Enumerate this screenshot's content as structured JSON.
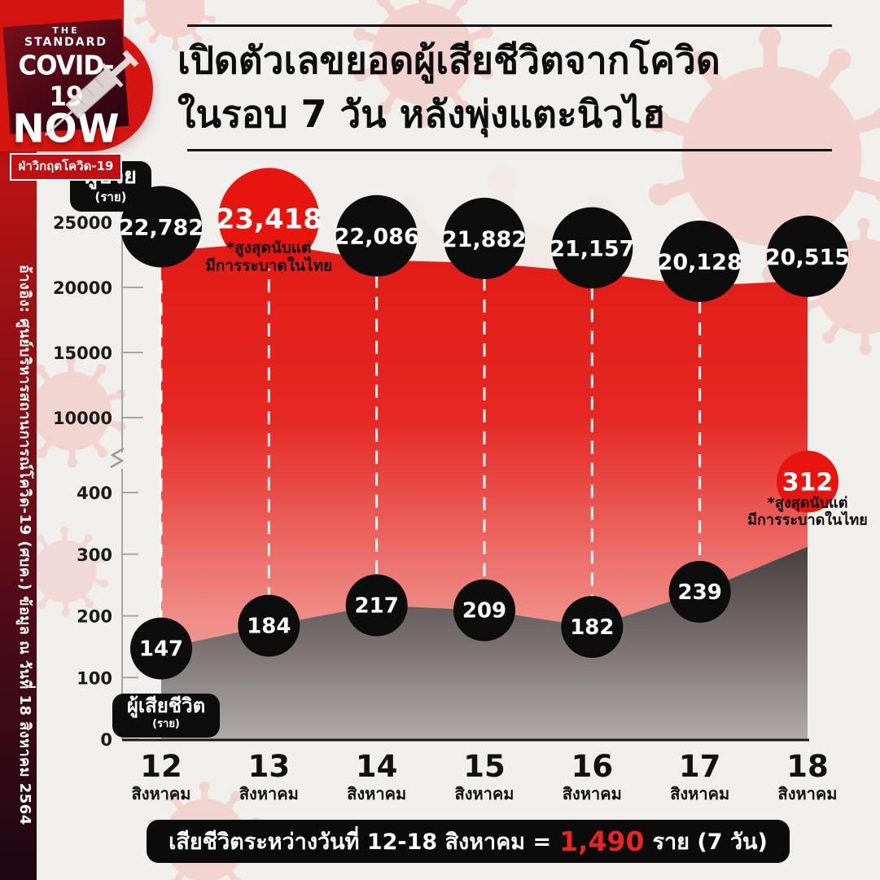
{
  "logo": {
    "the": "THE",
    "standard": "STANDARD",
    "covid19": "COVID-19",
    "now": "NOW",
    "tagline": "ฝ่าวิกฤตโควิด-19"
  },
  "sidebar": {
    "source": "อ้างอิง: ศูนย์บริหารสถานการณ์โควิด-19 (ศบค.) ข้อมูล ณ วันที่ 18 สิงหาคม 2564"
  },
  "title": {
    "line1": "เปิดตัวเลขยอดผู้เสียชีวิตจากโควิด",
    "line2": "ในรอบ 7 วัน หลังพุ่งแตะนิวไฮ"
  },
  "badges": {
    "cases_label": "ผู้ป่วย",
    "cases_unit": "(ราย)",
    "deaths_label": "ผู้เสียชีวิต",
    "deaths_unit": "(ราย)"
  },
  "annotations": {
    "record_note_line1": "*สูงสุดนับแต่",
    "record_note_line2": "มีการระบาดในไทย"
  },
  "footer": {
    "prefix": "เสียชีวิตระหว่างวันที่ 12-18 สิงหาคม =",
    "value": "1,490",
    "suffix": "ราย (7 วัน)"
  },
  "colors": {
    "accent_red": "#e8140e",
    "area_red_top": "#e21b16",
    "area_red_bottom": "#f3afa9",
    "area_gray_top": "#474040",
    "area_gray_bottom": "#b0abaa",
    "circle_black": "#0d0d0d",
    "virus_pink": "#f2c9c5"
  },
  "chart_data": {
    "type": "area",
    "categories": [
      "12 สิงหาคม",
      "13 สิงหาคม",
      "14 สิงหาคม",
      "15 สิงหาคม",
      "16 สิงหาคม",
      "17 สิงหาคม",
      "18 สิงหาคม"
    ],
    "series": [
      {
        "name": "ผู้ป่วย",
        "unit": "(ราย)",
        "values": [
          22782,
          23418,
          22086,
          21882,
          21157,
          20128,
          20515
        ],
        "highlight_index": 1
      },
      {
        "name": "ผู้เสียชีวิต",
        "unit": "(ราย)",
        "values": [
          147,
          184,
          217,
          209,
          182,
          239,
          312
        ],
        "highlight_index": 6
      }
    ],
    "y_axis_upper_ticks": [
      25000,
      20000,
      15000,
      10000
    ],
    "y_axis_lower_ticks": [
      400,
      300,
      200,
      100,
      0
    ],
    "axis_break": true,
    "grid": false,
    "legend_position": "inline-badges",
    "highlight_note": "*สูงสุดนับแต่มีการระบาดในไทย",
    "weekly_death_total": "1,490"
  }
}
